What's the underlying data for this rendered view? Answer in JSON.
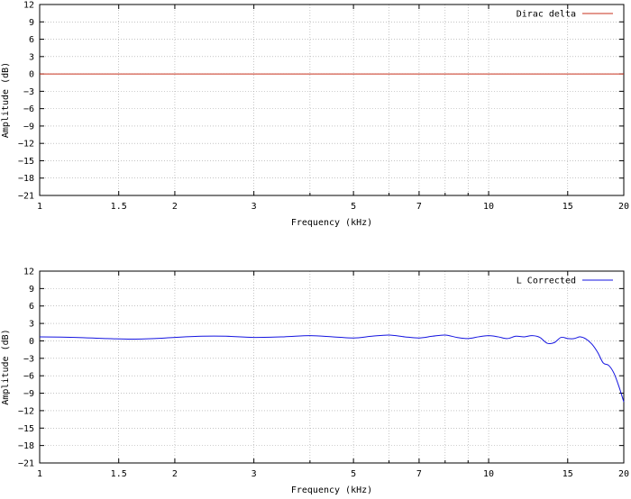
{
  "chart_data": [
    {
      "type": "line",
      "title": "",
      "xlabel": "Frequency (kHz)",
      "ylabel": "Amplitude (dB)",
      "xscale": "log",
      "xlim": [
        1,
        20
      ],
      "ylim": [
        -21,
        12
      ],
      "xticks": [
        1,
        1.5,
        2,
        3,
        5,
        7,
        10,
        15,
        20
      ],
      "xtick_labels": [
        "1",
        "1.5",
        "2",
        "3",
        "5",
        "7",
        "10",
        "15",
        "20"
      ],
      "yticks": [
        12,
        9,
        6,
        3,
        0,
        -3,
        -6,
        -9,
        -12,
        -15,
        -18,
        -21
      ],
      "ytick_labels": [
        "12",
        "9",
        "6",
        "3",
        "0",
        "−3",
        "−6",
        "−9",
        "−12",
        "−15",
        "−18",
        "−21"
      ],
      "legend_position": "top-right",
      "grid": true,
      "series": [
        {
          "name": "Dirac delta",
          "color": "#c8321e",
          "x": [
            1,
            20
          ],
          "y": [
            0,
            0
          ]
        }
      ]
    },
    {
      "type": "line",
      "title": "",
      "xlabel": "Frequency (kHz)",
      "ylabel": "Amplitude (dB)",
      "xscale": "log",
      "xlim": [
        1,
        20
      ],
      "ylim": [
        -21,
        12
      ],
      "xticks": [
        1,
        1.5,
        2,
        3,
        5,
        7,
        10,
        15,
        20
      ],
      "xtick_labels": [
        "1",
        "1.5",
        "2",
        "3",
        "5",
        "7",
        "10",
        "15",
        "20"
      ],
      "yticks": [
        12,
        9,
        6,
        3,
        0,
        -3,
        -6,
        -9,
        -12,
        -15,
        -18,
        -21
      ],
      "ytick_labels": [
        "12",
        "9",
        "6",
        "3",
        "0",
        "−3",
        "−6",
        "−9",
        "−12",
        "−15",
        "−18",
        "−21"
      ],
      "legend_position": "top-right",
      "grid": true,
      "series": [
        {
          "name": "L Corrected",
          "color": "#1414e0",
          "x": [
            1,
            1.2,
            1.4,
            1.6,
            1.8,
            2.0,
            2.3,
            2.6,
            3.0,
            3.5,
            4.0,
            4.5,
            5.0,
            5.5,
            6.0,
            6.5,
            7.0,
            7.5,
            8.0,
            8.5,
            9.0,
            9.5,
            10.0,
            10.5,
            11.0,
            11.5,
            12.0,
            12.5,
            13.0,
            13.5,
            14.0,
            14.5,
            15.0,
            15.5,
            16.0,
            16.5,
            17.0,
            17.5,
            18.0,
            18.5,
            19.0,
            19.5,
            20.0
          ],
          "y": [
            0.7,
            0.6,
            0.4,
            0.3,
            0.4,
            0.6,
            0.8,
            0.8,
            0.6,
            0.7,
            0.9,
            0.7,
            0.5,
            0.8,
            1.0,
            0.7,
            0.5,
            0.8,
            1.0,
            0.6,
            0.4,
            0.7,
            0.9,
            0.7,
            0.4,
            0.8,
            0.7,
            0.9,
            0.6,
            -0.4,
            -0.3,
            0.6,
            0.4,
            0.4,
            0.7,
            0.3,
            -0.6,
            -2.0,
            -3.8,
            -4.2,
            -5.5,
            -7.8,
            -10.5
          ]
        }
      ]
    }
  ]
}
